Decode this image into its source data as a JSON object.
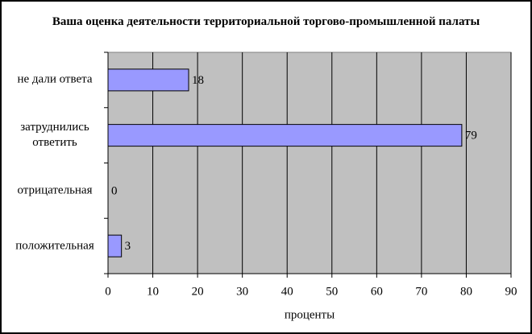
{
  "chart_data": {
    "type": "hbar",
    "title": "Ваша оценка деятельности территориальной торгово-промышленной палаты",
    "categories": [
      "не дали ответа",
      "затруднились ответить",
      "отрицательная",
      "положительная"
    ],
    "values": [
      18,
      79,
      0,
      3
    ],
    "color": "#9999ff",
    "xlabel": "проценты",
    "xlim": [
      0,
      90
    ],
    "xticks": [
      0,
      10,
      20,
      30,
      40,
      50,
      60,
      70,
      80,
      90
    ],
    "grid": true
  }
}
